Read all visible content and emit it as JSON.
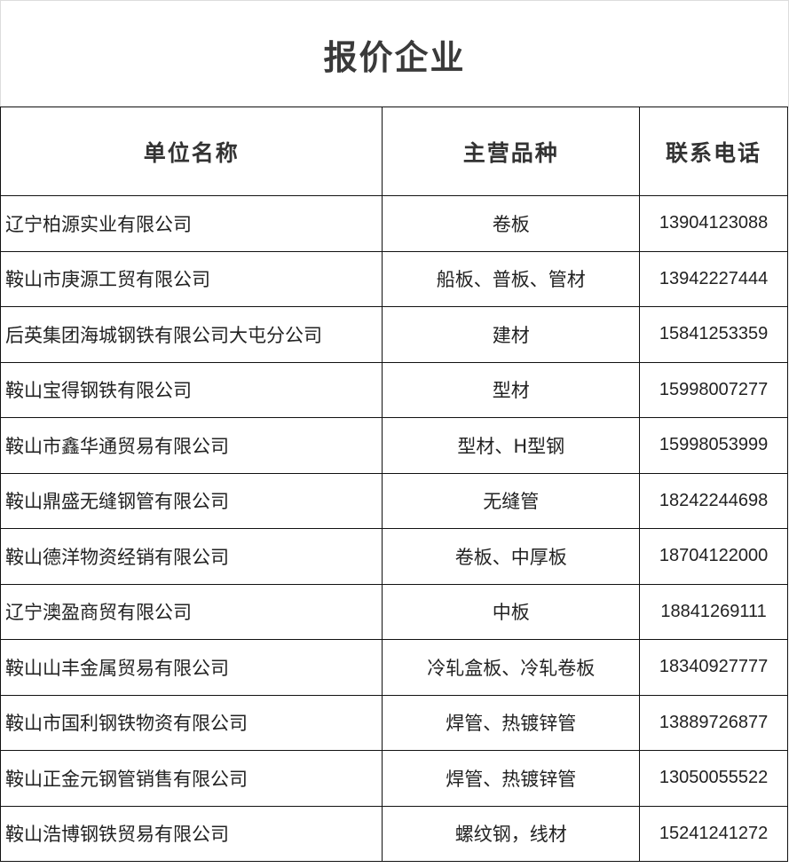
{
  "title": "报价企业",
  "headers": [
    "单位名称",
    "主营品种",
    "联系电话"
  ],
  "rows": [
    {
      "name": "辽宁柏源实业有限公司",
      "product": "卷板",
      "phone": "13904123088"
    },
    {
      "name": "鞍山市庚源工贸有限公司",
      "product": "船板、普板、管材",
      "phone": "13942227444"
    },
    {
      "name": "后英集团海城钢铁有限公司大屯分公司",
      "product": "建材",
      "phone": "15841253359"
    },
    {
      "name": "鞍山宝得钢铁有限公司",
      "product": "型材",
      "phone": "15998007277"
    },
    {
      "name": "鞍山市鑫华通贸易有限公司",
      "product": "型材、H型钢",
      "phone": "15998053999"
    },
    {
      "name": "鞍山鼎盛无缝钢管有限公司",
      "product": "无缝管",
      "phone": "18242244698"
    },
    {
      "name": "鞍山德洋物资经销有限公司",
      "product": "卷板、中厚板",
      "phone": "18704122000"
    },
    {
      "name": "辽宁澳盈商贸有限公司",
      "product": "中板",
      "phone": "18841269111"
    },
    {
      "name": "鞍山山丰金属贸易有限公司",
      "product": "冷轧盒板、冷轧卷板",
      "phone": "18340927777"
    },
    {
      "name": "鞍山市国利钢铁物资有限公司",
      "product": "焊管、热镀锌管",
      "phone": "13889726877"
    },
    {
      "name": "鞍山正金元钢管销售有限公司",
      "product": "焊管、热镀锌管",
      "phone": "13050055522"
    },
    {
      "name": "鞍山浩博钢铁贸易有限公司",
      "product": "螺纹钢，线材",
      "phone": "15241241272"
    }
  ]
}
